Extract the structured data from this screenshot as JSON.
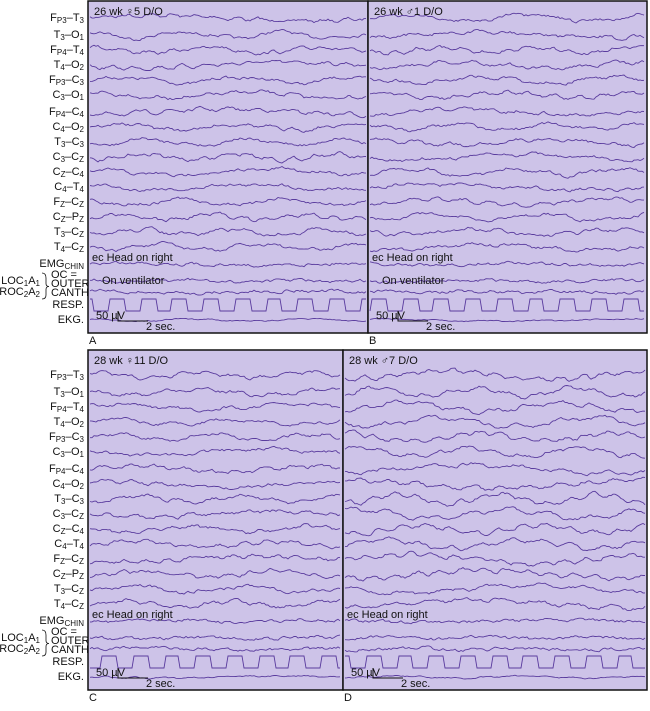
{
  "label_groups": [
    {
      "channels": [
        [
          "F",
          "P3",
          "–T",
          "3"
        ],
        [
          "T",
          "3",
          "–O",
          "1"
        ],
        [
          "F",
          "P4",
          "–T",
          "4"
        ],
        [
          "T",
          "4",
          "–O",
          "2"
        ],
        [
          "F",
          "P3",
          "–C",
          "3"
        ],
        [
          "C",
          "3",
          "–O",
          "1"
        ],
        [
          "F",
          "P4",
          "–C",
          "4"
        ],
        [
          "C",
          "4",
          "–O",
          "2"
        ],
        [
          "T",
          "3",
          "–C",
          "3"
        ],
        [
          "C",
          "3",
          "–C",
          "Z"
        ],
        [
          "C",
          "Z",
          "–C",
          "4"
        ],
        [
          "C",
          "4",
          "–T",
          "4"
        ],
        [
          "F",
          "Z",
          "–C",
          "Z"
        ],
        [
          "C",
          "Z",
          "–P",
          "Z"
        ],
        [
          "T",
          "3",
          "–C",
          "Z"
        ],
        [
          "T",
          "4",
          "–C",
          "Z"
        ],
        [
          "EMG",
          "CHIN"
        ],
        [
          "LOC",
          "1",
          "A",
          "1"
        ],
        [
          "ROC",
          "2",
          "A",
          "2"
        ],
        [
          "RESP."
        ],
        [
          "EKG."
        ]
      ],
      "bracket_note": [
        "OC =",
        "OUTER",
        "CANTHUS"
      ]
    },
    {
      "channels": [
        [
          "F",
          "P3",
          "–T",
          "3"
        ],
        [
          "T",
          "3",
          "–O",
          "1"
        ],
        [
          "F",
          "P4",
          "–T",
          "4"
        ],
        [
          "T",
          "4",
          "–O",
          "2"
        ],
        [
          "F",
          "P3",
          "–C",
          "3"
        ],
        [
          "C",
          "3",
          "–O",
          "1"
        ],
        [
          "F",
          "P4",
          "–C",
          "4"
        ],
        [
          "C",
          "4",
          "–O",
          "2"
        ],
        [
          "T",
          "3",
          "–C",
          "3"
        ],
        [
          "C",
          "3",
          "–C",
          "Z"
        ],
        [
          "C",
          "Z",
          "–C",
          "4"
        ],
        [
          "C",
          "4",
          "–T",
          "4"
        ],
        [
          "F",
          "Z",
          "–C",
          "Z"
        ],
        [
          "C",
          "Z",
          "–P",
          "Z"
        ],
        [
          "T",
          "3",
          "–C",
          "Z"
        ],
        [
          "T",
          "4",
          "–C",
          "Z"
        ],
        [
          "EMG",
          "CHIN"
        ],
        [
          "LOC",
          "1",
          "A",
          "1"
        ],
        [
          "ROC",
          "2",
          "A",
          "2"
        ],
        [
          "RESP."
        ],
        [
          "EKG."
        ]
      ],
      "bracket_note": [
        "OC =",
        "OUTER",
        "CANTHUS"
      ]
    }
  ],
  "panels": [
    {
      "letter": "A",
      "header": "26 wk ♀5 D/O",
      "annotations": [
        "ec Head on right",
        "On ventilator"
      ],
      "scale_voltage": "50 µV",
      "scale_time": "2 sec."
    },
    {
      "letter": "B",
      "header": "26 wk ♂1 D/O",
      "annotations": [
        "ec Head on right",
        "On ventilator"
      ],
      "scale_voltage": "50 µV",
      "scale_time": "2 sec."
    },
    {
      "letter": "C",
      "header": "28 wk ♀11 D/O",
      "annotations": [
        "ec Head on right"
      ],
      "scale_voltage": "50 µV",
      "scale_time": "2 sec."
    },
    {
      "letter": "D",
      "header": "28 wk ♂7 D/O",
      "annotations": [
        "ec Head on right"
      ],
      "scale_voltage": "50 µV",
      "scale_time": "2 sec."
    }
  ]
}
